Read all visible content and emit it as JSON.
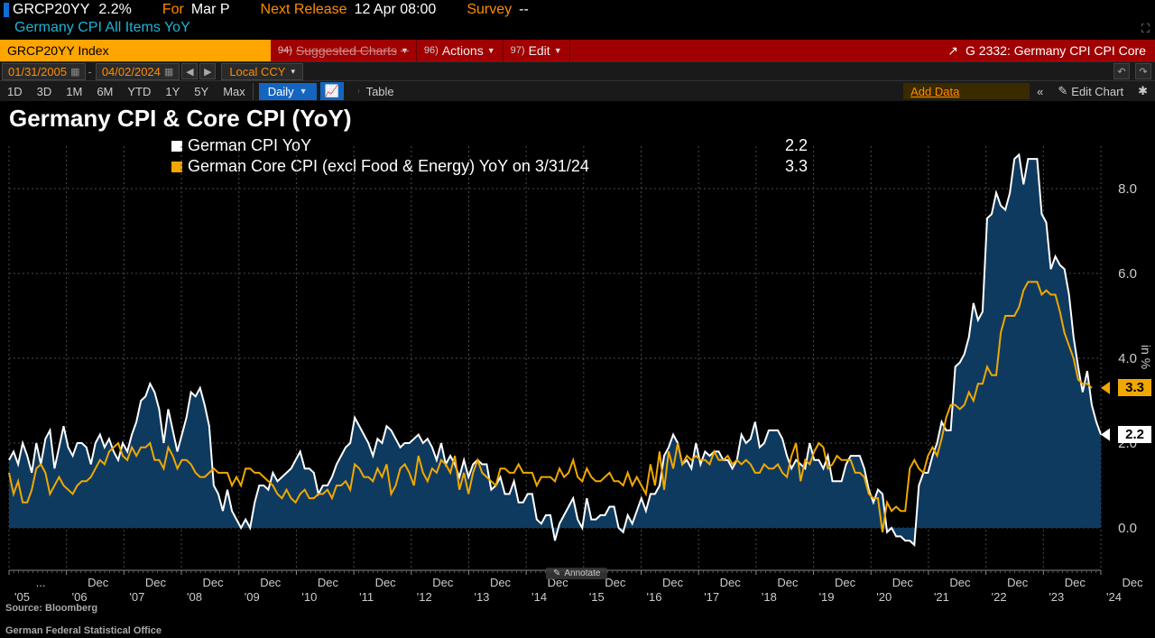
{
  "top": {
    "ticker": "GRCP20YY",
    "ticker_val": "2.2%",
    "for_lbl": "For",
    "for_val": "Mar P",
    "next_lbl": "Next Release",
    "next_val": "12 Apr 08:00",
    "survey_lbl": "Survey",
    "survey_val": "--",
    "desc": "Germany CPI All Items YoY",
    "src": "German Federal Statistical Office"
  },
  "cmd": {
    "index": "GRCP20YY Index",
    "sug_num": "94)",
    "sug": "Suggested Charts",
    "act_num": "96)",
    "act": "Actions",
    "edit_num": "97)",
    "edit": "Edit",
    "right": "G 2332: Germany CPI CPI Core"
  },
  "dates": {
    "from": "01/31/2005",
    "to": "04/02/2024",
    "ccy": "Local CCY"
  },
  "range": {
    "r1": "1D",
    "r2": "3D",
    "r3": "1M",
    "r4": "6M",
    "r5": "YTD",
    "r6": "1Y",
    "r7": "5Y",
    "r8": "Max",
    "freq": "Daily",
    "table": "Table",
    "add": "Add Data",
    "editchart": "Edit Chart"
  },
  "chart": {
    "title": "Germany CPI & Core CPI (YoY)",
    "type": "line+area",
    "background": "#000000",
    "grid_color": "#4a4a4a",
    "series1": {
      "name": "German CPI YoY",
      "color": "#ffffff",
      "fill": "#0f3a5f",
      "last": "2.2",
      "end_bg": "#ffffff",
      "end_fg": "#000000"
    },
    "series2": {
      "name": "German Core CPI (excl Food & Energy) YoY on 3/31/24",
      "color": "#f0a800",
      "last": "3.3",
      "end_bg": "#f0a800",
      "end_fg": "#000000"
    },
    "ylabel": "in %",
    "ylim": [
      -1.0,
      9.0
    ],
    "yticks": [
      0.0,
      2.0,
      4.0,
      6.0,
      8.0
    ],
    "xlabels": [
      "...",
      "Dec",
      "Dec",
      "Dec",
      "Dec",
      "Dec",
      "Dec",
      "Dec",
      "Dec",
      "Dec",
      "Dec",
      "Dec",
      "Dec",
      "Dec",
      "Dec",
      "Dec",
      "Dec",
      "Dec",
      "Dec",
      "Dec"
    ],
    "xlabels2": [
      "'05",
      "'06",
      "'07",
      "'08",
      "'09",
      "'10",
      "'11",
      "'12",
      "'13",
      "'14",
      "'15",
      "'16",
      "'17",
      "'18",
      "'19",
      "'20",
      "'21",
      "'22",
      "'23",
      "'24"
    ],
    "annotate": "Annotate",
    "source": "Source: Bloomberg",
    "cpi": [
      1.6,
      1.8,
      1.5,
      2.0,
      1.7,
      1.3,
      2.0,
      1.5,
      2.1,
      2.3,
      1.4,
      1.9,
      2.4,
      1.9,
      1.7,
      2.0,
      2.0,
      1.9,
      1.5,
      2.0,
      2.2,
      1.9,
      2.1,
      1.8,
      1.6,
      2.0,
      1.8,
      2.2,
      2.5,
      3.0,
      3.1,
      3.4,
      3.2,
      2.8,
      2.0,
      2.8,
      2.3,
      1.8,
      2.2,
      2.6,
      3.2,
      3.1,
      3.3,
      2.9,
      2.4,
      1.0,
      0.8,
      0.4,
      0.9,
      0.4,
      0.2,
      0.0,
      0.2,
      0.0,
      0.6,
      1.0,
      1.0,
      0.9,
      1.3,
      1.1,
      1.2,
      1.3,
      1.4,
      1.6,
      1.8,
      1.4,
      1.4,
      1.3,
      0.8,
      1.0,
      1.0,
      1.2,
      1.5,
      1.7,
      1.9,
      2.0,
      2.6,
      2.4,
      2.2,
      2.0,
      1.7,
      2.1,
      2.0,
      2.4,
      2.3,
      2.1,
      1.9,
      2.0,
      2.0,
      2.1,
      2.2,
      2.0,
      2.1,
      1.9,
      1.6,
      2.0,
      1.5,
      1.7,
      1.5,
      1.2,
      1.6,
      1.2,
      1.5,
      1.6,
      1.5,
      1.5,
      0.9,
      1.0,
      1.2,
      0.8,
      0.8,
      1.1,
      0.6,
      0.6,
      0.8,
      0.8,
      0.2,
      0.1,
      0.3,
      0.3,
      -0.3,
      0.1,
      0.3,
      0.5,
      0.7,
      0.2,
      0.0,
      0.7,
      0.2,
      0.2,
      0.3,
      0.3,
      0.5,
      0.5,
      0.0,
      -0.1,
      0.3,
      0.1,
      0.4,
      0.7,
      0.4,
      0.8,
      0.8,
      1.0,
      1.7,
      1.9,
      2.2,
      2.0,
      1.5,
      1.6,
      1.4,
      2.0,
      1.5,
      1.8,
      1.7,
      1.8,
      1.8,
      1.6,
      1.6,
      1.4,
      1.6,
      2.2,
      2.0,
      2.1,
      2.5,
      1.9,
      2.0,
      2.3,
      2.3,
      2.3,
      2.1,
      1.7,
      1.4,
      1.6,
      1.5,
      1.4,
      2.0,
      1.6,
      1.6,
      1.4,
      1.7,
      1.1,
      1.1,
      1.1,
      1.5,
      1.7,
      1.7,
      1.7,
      1.4,
      0.9,
      0.6,
      0.9,
      0.8,
      -0.1,
      0.0,
      -0.2,
      -0.2,
      -0.3,
      -0.3,
      -0.4,
      1.0,
      1.3,
      1.3,
      1.7,
      2.0,
      2.5,
      2.3,
      2.3,
      3.8,
      3.9,
      4.1,
      4.5,
      5.3,
      4.9,
      5.1,
      7.3,
      7.4,
      7.9,
      7.6,
      7.5,
      7.9,
      8.7,
      8.8,
      8.1,
      8.7,
      8.7,
      8.7,
      7.4,
      7.2,
      6.1,
      6.4,
      6.2,
      6.1,
      5.5,
      4.5,
      3.8,
      3.2,
      3.7,
      2.9,
      2.5,
      2.2
    ],
    "core": [
      1.3,
      0.8,
      1.1,
      0.6,
      0.6,
      0.9,
      1.4,
      1.5,
      1.3,
      0.8,
      1.0,
      1.2,
      1.0,
      0.9,
      0.8,
      1.0,
      1.1,
      1.1,
      1.2,
      1.4,
      1.6,
      1.5,
      1.8,
      1.9,
      2.0,
      1.7,
      1.6,
      1.9,
      1.7,
      1.9,
      1.9,
      2.0,
      1.6,
      1.6,
      1.4,
      1.9,
      1.7,
      1.4,
      1.6,
      1.6,
      1.5,
      1.3,
      1.2,
      1.2,
      1.3,
      1.4,
      1.3,
      1.3,
      1.3,
      1.0,
      1.2,
      1.0,
      1.4,
      1.4,
      1.3,
      1.3,
      1.2,
      1.1,
      1.0,
      0.8,
      0.7,
      0.9,
      0.7,
      0.6,
      0.8,
      0.9,
      0.7,
      0.7,
      0.8,
      0.8,
      0.9,
      0.7,
      1.0,
      1.0,
      1.1,
      0.9,
      1.5,
      1.4,
      1.2,
      1.2,
      1.1,
      1.4,
      1.2,
      1.5,
      0.8,
      1.0,
      1.4,
      1.5,
      1.3,
      1.0,
      1.7,
      1.3,
      1.1,
      1.4,
      1.3,
      1.6,
      1.5,
      1.3,
      1.7,
      0.9,
      1.3,
      0.8,
      1.3,
      1.6,
      1.3,
      1.2,
      1.1,
      1.0,
      1.4,
      1.4,
      1.3,
      1.3,
      1.5,
      1.3,
      1.3,
      1.3,
      1.0,
      1.2,
      1.2,
      1.2,
      1.1,
      1.4,
      1.2,
      1.3,
      1.6,
      1.2,
      1.1,
      1.4,
      1.2,
      1.1,
      1.1,
      1.2,
      1.3,
      1.1,
      1.1,
      1.0,
      1.3,
      1.0,
      1.2,
      1.0,
      0.8,
      1.5,
      1.0,
      1.8,
      0.9,
      1.8,
      1.4,
      2.0,
      1.5,
      1.7,
      1.6,
      1.7,
      1.6,
      1.6,
      1.5,
      1.8,
      1.6,
      1.6,
      1.7,
      1.5,
      1.6,
      1.5,
      1.6,
      1.5,
      1.3,
      1.3,
      1.5,
      1.4,
      1.4,
      1.5,
      1.3,
      1.2,
      1.7,
      2.0,
      1.1,
      1.6,
      1.5,
      1.8,
      2.0,
      1.9,
      1.4,
      1.5,
      1.7,
      1.6,
      1.6,
      1.6,
      1.3,
      1.3,
      1.2,
      0.8,
      0.7,
      0.7,
      -0.1,
      0.6,
      0.4,
      0.5,
      0.4,
      0.4,
      1.4,
      1.6,
      1.4,
      1.3,
      1.7,
      1.9,
      1.7,
      2.1,
      2.6,
      2.9,
      2.9,
      2.8,
      2.9,
      3.2,
      3.0,
      3.4,
      3.4,
      3.8,
      3.6,
      3.6,
      4.6,
      5.0,
      5.0,
      5.0,
      5.2,
      5.6,
      5.8,
      5.8,
      5.8,
      5.5,
      5.6,
      5.5,
      5.5,
      5.1,
      4.6,
      4.3,
      4.0,
      3.5,
      3.4,
      3.4,
      3.3
    ]
  }
}
